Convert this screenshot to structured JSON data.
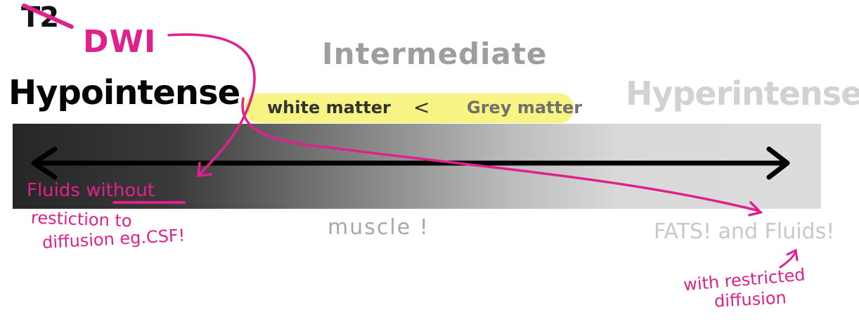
{
  "header": {
    "crossed_label": "T2",
    "mode_label": "DWI"
  },
  "scale": {
    "left_label": "Hypointense",
    "middle_label": "Intermediate",
    "right_label": "Hyperintense"
  },
  "comparison": {
    "left": "white matter",
    "operator": "<",
    "right": "Grey matter"
  },
  "annotations": {
    "fluids_line1": "Fluids without",
    "restriction_line1": "restiction to",
    "restriction_line2": "diffusion eg.CSF!",
    "muscle": "muscle !",
    "fats": "FATS! and Fluids!",
    "with_line1": "with restricted",
    "with_line2": "diffusion"
  },
  "colors": {
    "annotation_pink": "#e0208c",
    "highlight_yellow": "#f7f484",
    "bar_dark": "#262626",
    "bar_light": "#dcdcdc"
  }
}
